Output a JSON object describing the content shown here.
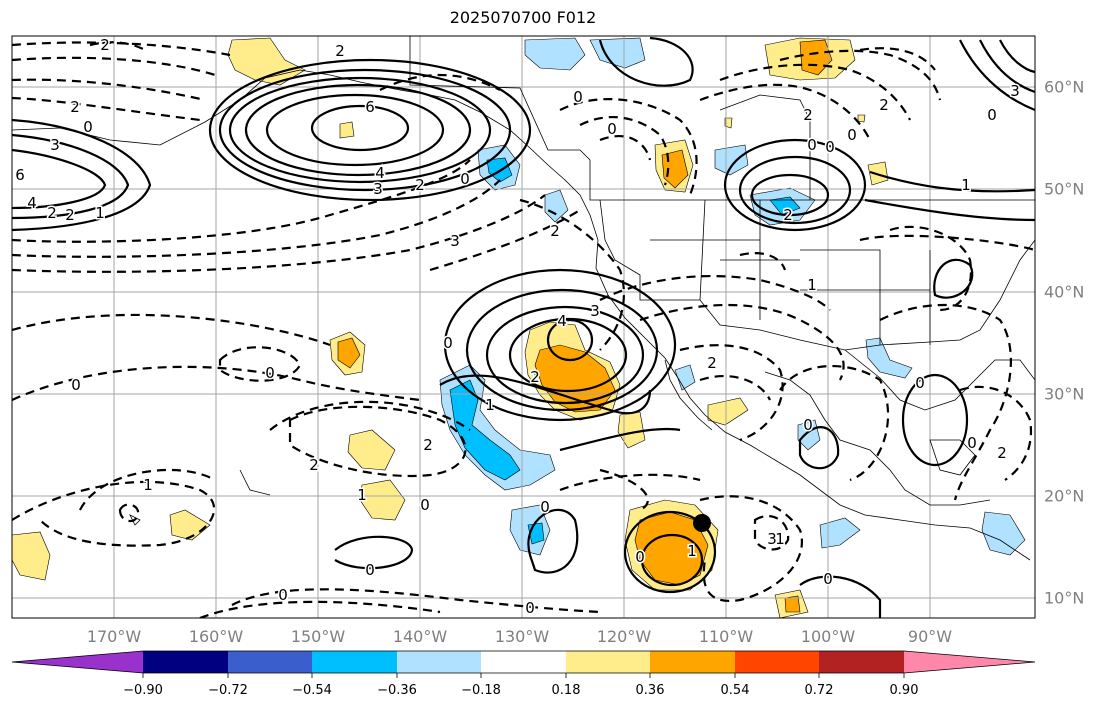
{
  "title": "2025070700 F012",
  "axes": {
    "lon_labels": [
      "170°W",
      "160°W",
      "150°W",
      "140°W",
      "130°W",
      "120°W",
      "110°W",
      "100°W",
      "90°W"
    ],
    "lat_labels": [
      "60°N",
      "50°N",
      "40°N",
      "30°N",
      "20°N",
      "10°N"
    ]
  },
  "colorbar": {
    "ticks": [
      "−0.90",
      "−0.72",
      "−0.54",
      "−0.36",
      "−0.18",
      "0.18",
      "0.36",
      "0.54",
      "0.72",
      "0.90"
    ],
    "colors": [
      "#9932cc",
      "#000080",
      "#3a5fcd",
      "#00bfff",
      "#b0e2ff",
      "#ffffff",
      "#ffec8b",
      "#ffa500",
      "#ff4500",
      "#b22222",
      "#ff88aa"
    ]
  },
  "contour_labels": [
    {
      "text": "2"
    },
    {
      "text": "2"
    },
    {
      "text": "2"
    },
    {
      "text": "6"
    },
    {
      "text": "4"
    },
    {
      "text": "3"
    },
    {
      "text": "2"
    },
    {
      "text": "0"
    },
    {
      "text": "0"
    },
    {
      "text": "3"
    },
    {
      "text": "2"
    },
    {
      "text": "2"
    },
    {
      "text": "1"
    },
    {
      "text": "6"
    },
    {
      "text": "4"
    },
    {
      "text": "3"
    },
    {
      "text": "0"
    },
    {
      "text": "0"
    },
    {
      "text": "0"
    },
    {
      "text": "2"
    },
    {
      "text": "3"
    },
    {
      "text": "2"
    },
    {
      "text": "1"
    },
    {
      "text": "0"
    },
    {
      "text": "2"
    },
    {
      "text": "0"
    },
    {
      "text": "0"
    },
    {
      "text": "2"
    },
    {
      "text": "1"
    },
    {
      "text": "1"
    },
    {
      "text": "1"
    },
    {
      "text": "4"
    },
    {
      "text": "3"
    },
    {
      "text": "2"
    },
    {
      "text": "0"
    },
    {
      "text": "0"
    },
    {
      "text": "0"
    },
    {
      "text": "2"
    },
    {
      "text": "2"
    },
    {
      "text": "1"
    },
    {
      "text": "0"
    },
    {
      "text": "0"
    },
    {
      "text": "0"
    },
    {
      "text": "0"
    },
    {
      "text": "0"
    },
    {
      "text": "1"
    },
    {
      "text": "2"
    },
    {
      "text": "1"
    },
    {
      "text": "0"
    },
    {
      "text": "0"
    },
    {
      "text": "3"
    },
    {
      "text": "0"
    },
    {
      "text": "0"
    },
    {
      "text": "1"
    },
    {
      "text": "2"
    },
    {
      "text": "0"
    }
  ]
}
